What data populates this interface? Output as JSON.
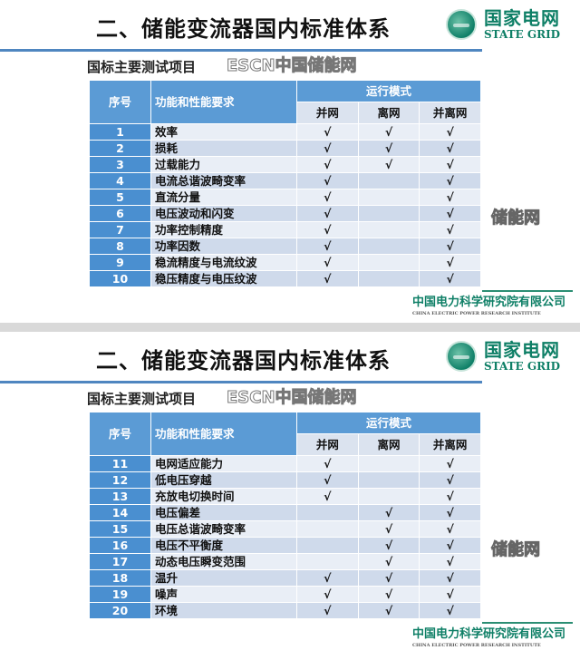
{
  "slides": [
    {
      "title": "二、储能变流器国内标准体系",
      "subtitle": "国标主要测试项目",
      "rows": [
        {
          "no": "1",
          "name": "效率",
          "c": [
            "√",
            "√",
            "√"
          ]
        },
        {
          "no": "2",
          "name": "损耗",
          "c": [
            "√",
            "√",
            "√"
          ]
        },
        {
          "no": "3",
          "name": "过载能力",
          "c": [
            "√",
            "√",
            "√"
          ]
        },
        {
          "no": "4",
          "name": "电流总谐波畸变率",
          "c": [
            "√",
            "",
            "√"
          ]
        },
        {
          "no": "5",
          "name": "直流分量",
          "c": [
            "√",
            "",
            "√"
          ]
        },
        {
          "no": "6",
          "name": "电压波动和闪变",
          "c": [
            "√",
            "",
            "√"
          ]
        },
        {
          "no": "7",
          "name": "功率控制精度",
          "c": [
            "√",
            "",
            "√"
          ]
        },
        {
          "no": "8",
          "name": "功率因数",
          "c": [
            "√",
            "",
            "√"
          ]
        },
        {
          "no": "9",
          "name": "稳流精度与电流纹波",
          "c": [
            "√",
            "",
            "√"
          ]
        },
        {
          "no": "10",
          "name": "稳压精度与电压纹波",
          "c": [
            "√",
            "",
            "√"
          ]
        }
      ]
    },
    {
      "title": "二、储能变流器国内标准体系",
      "subtitle": "国标主要测试项目",
      "rows": [
        {
          "no": "11",
          "name": "电网适应能力",
          "c": [
            "√",
            "",
            "√"
          ]
        },
        {
          "no": "12",
          "name": "低电压穿越",
          "c": [
            "√",
            "",
            "√"
          ]
        },
        {
          "no": "13",
          "name": "充放电切换时间",
          "c": [
            "√",
            "",
            "√"
          ]
        },
        {
          "no": "14",
          "name": "电压偏差",
          "c": [
            "",
            "√",
            "√"
          ]
        },
        {
          "no": "15",
          "name": "电压总谐波畸变率",
          "c": [
            "",
            "√",
            "√"
          ]
        },
        {
          "no": "16",
          "name": "电压不平衡度",
          "c": [
            "",
            "√",
            "√"
          ]
        },
        {
          "no": "17",
          "name": "动态电压瞬变范围",
          "c": [
            "",
            "√",
            "√"
          ]
        },
        {
          "no": "18",
          "name": "温升",
          "c": [
            "√",
            "√",
            "√"
          ]
        },
        {
          "no": "19",
          "name": "噪声",
          "c": [
            "√",
            "√",
            "√"
          ]
        },
        {
          "no": "20",
          "name": "环境",
          "c": [
            "√",
            "√",
            "√"
          ]
        }
      ]
    }
  ],
  "table_header": {
    "seq": "序号",
    "requirement": "功能和性能要求",
    "mode": "运行模式",
    "modes": [
      "并网",
      "离网",
      "并离网"
    ]
  },
  "logo": {
    "cn": "国家电网",
    "en": "STATE GRID"
  },
  "footer": {
    "cn": "中国电力科学研究院有限公司",
    "en": "CHINA ELECTRIC POWER RESEARCH INSTITUTE"
  },
  "watermarks": {
    "left": "ESCN中国储能网",
    "right": "储能网"
  },
  "colors": {
    "header_blue": "#5b9bd5",
    "seq_blue": "#4a8fd0",
    "brand_green": "#0e7f66",
    "rule_blue": "#4f86c0"
  }
}
